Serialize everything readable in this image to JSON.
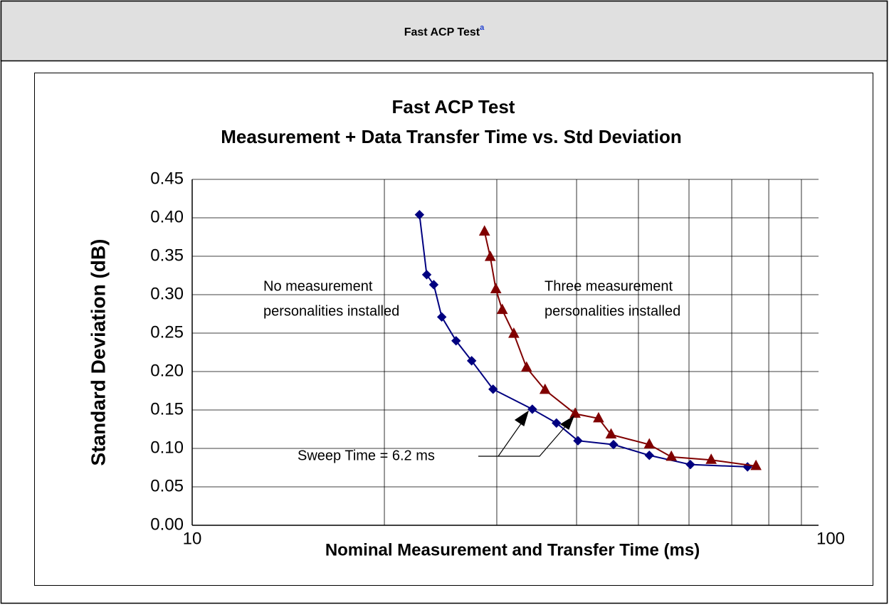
{
  "header": {
    "title": "Fast ACP Test",
    "footnote": "a"
  },
  "chart_data": {
    "type": "line",
    "title": [
      "Fast ACP Test",
      "Measurement + Data Transfer Time vs. Std Deviation"
    ],
    "x_label": "Nominal Measurement and Transfer Time (ms)",
    "y_label": "Standard Deviation (dB)",
    "x_log": true,
    "xlim": [
      10,
      100
    ],
    "xticks": [
      10,
      100
    ],
    "x_minor_grid": [
      20,
      30,
      40,
      50,
      60,
      70,
      80,
      90
    ],
    "ylim": [
      0,
      0.45
    ],
    "yticks": [
      {
        "value": 0,
        "label": "0.00"
      },
      0.05,
      {
        "value": 0.1,
        "label": "0.10"
      },
      0.15,
      {
        "value": 0.2,
        "label": "0.20"
      },
      0.25,
      {
        "value": 0.3,
        "label": "0.30"
      },
      0.35,
      {
        "value": 0.4,
        "label": "0.40"
      },
      0.45
    ],
    "grid": true,
    "series": [
      {
        "color": "#000080",
        "marker": "diamond",
        "x": [
          22.7,
          23.3,
          23.9,
          24.6,
          25.9,
          27.4,
          29.6,
          34.1,
          37.2,
          40.2,
          45.7,
          52.0,
          60.3,
          74.1
        ],
        "values": [
          0.404,
          0.326,
          0.313,
          0.271,
          0.24,
          0.214,
          0.177,
          0.151,
          0.133,
          0.11,
          0.105,
          0.091,
          0.079,
          0.076
        ]
      },
      {
        "color": "#800000",
        "marker": "triangle",
        "x": [
          28.7,
          29.3,
          29.9,
          30.6,
          31.9,
          33.4,
          35.7,
          39.8,
          43.3,
          45.3,
          52.0,
          56.3,
          65.0,
          76.4
        ],
        "values": [
          0.382,
          0.349,
          0.307,
          0.28,
          0.249,
          0.205,
          0.176,
          0.145,
          0.139,
          0.118,
          0.105,
          0.089,
          0.085,
          0.077
        ]
      }
    ],
    "annotations": [
      {
        "lines": [
          "No measurement",
          "personalities installed"
        ]
      },
      {
        "lines": [
          "Three measurement",
          "personalities installed"
        ]
      },
      {
        "lines": [
          "Sweep Time = 6.2 ms"
        ]
      }
    ]
  }
}
